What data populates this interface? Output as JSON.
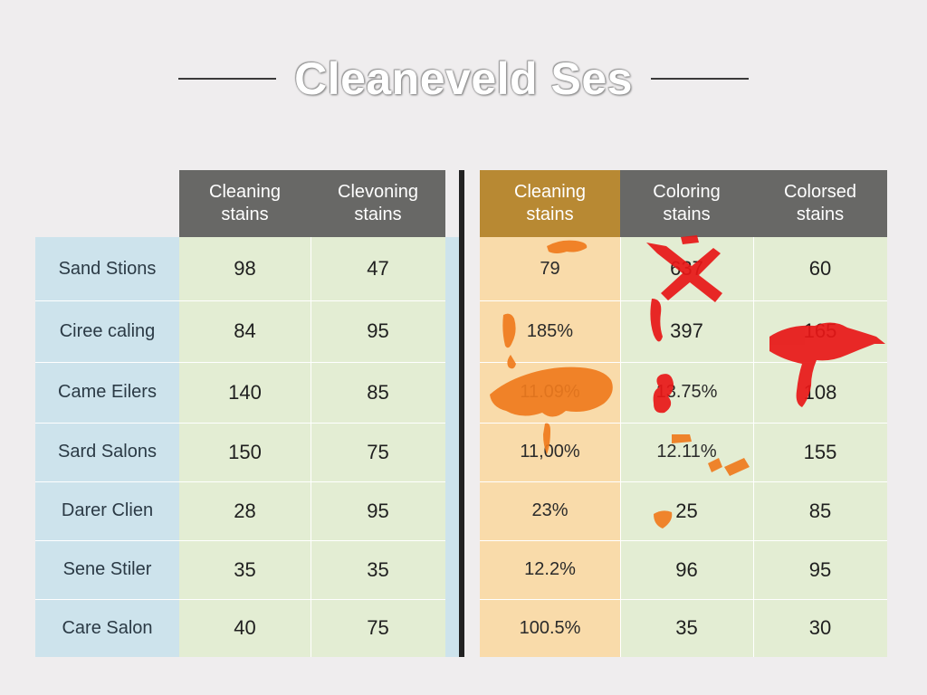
{
  "title": "Cleaneveld Ses",
  "colors": {
    "header_gray": "#686866",
    "header_gold": "#b88933",
    "green": "#e3edd3",
    "orange": "#f9dbaa",
    "blue": "#cde3ec",
    "splat_orange": "#f07b1d",
    "splat_red": "#e81717"
  },
  "chart_data": {
    "type": "table",
    "columns": [
      "Cleaning\nstains",
      "Clevoning\nstains",
      "Cleaning\nstains",
      "Coloring\nstains",
      "Colorsed\nstains"
    ],
    "rows": [
      {
        "label": "Sand Stions",
        "values": [
          "98",
          "47",
          "79",
          "637",
          "60"
        ]
      },
      {
        "label": "Ciree caling",
        "values": [
          "84",
          "95",
          "185%",
          "397",
          "165"
        ]
      },
      {
        "label": "Came Eilers",
        "values": [
          "140",
          "85",
          "11.09%",
          "13.75%",
          "108"
        ]
      },
      {
        "label": "Sard Salons",
        "values": [
          "150",
          "75",
          "11,00%",
          "12.11%",
          "155"
        ]
      },
      {
        "label": "Darer Clien",
        "values": [
          "28",
          "95",
          "23%",
          "25",
          "85"
        ]
      },
      {
        "label": "Sene Stiler",
        "values": [
          "35",
          "35",
          "12.2%",
          "96",
          "95"
        ]
      },
      {
        "label": "Care Salon",
        "values": [
          "40",
          "75",
          "100.5%",
          "35",
          "30"
        ]
      }
    ]
  }
}
